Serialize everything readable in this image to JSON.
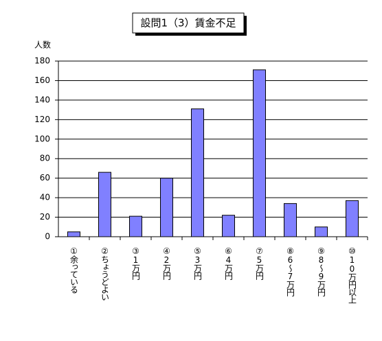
{
  "chart_data": {
    "type": "bar",
    "title": "設問1（3）賃金不足",
    "y_label": "人数",
    "categories": [
      "①余っている",
      "②ちょうどよい",
      "③1万円",
      "④2万円",
      "⑤3万円",
      "⑥4万円",
      "⑦5万円",
      "⑧6～7万円",
      "⑨8～9万円",
      "⑩10万円以上"
    ],
    "values": [
      5,
      66,
      21,
      60,
      131,
      22,
      171,
      34,
      10,
      37
    ],
    "color": "#8080ff",
    "ylim": [
      0,
      180
    ],
    "yticks": [
      0,
      20,
      40,
      60,
      80,
      100,
      120,
      140,
      160,
      180
    ],
    "grid": true
  }
}
